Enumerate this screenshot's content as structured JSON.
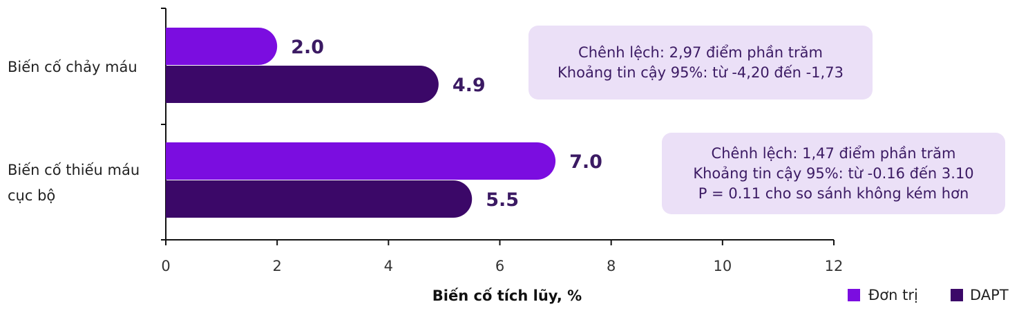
{
  "colors": {
    "don_tri": "#7b0de0",
    "dapt": "#3b0868",
    "value_text": "#3b1a63",
    "annotation_bg": "#ebe0f7",
    "axis": "#111111"
  },
  "chart_data": {
    "type": "bar",
    "orientation": "horizontal",
    "categories": [
      {
        "lines": [
          "Biến cố chảy máu"
        ]
      },
      {
        "lines": [
          "Biến cố thiếu máu",
          "cục bộ"
        ]
      }
    ],
    "series": [
      {
        "name": "Đơn trị",
        "values": [
          2.0,
          7.0
        ],
        "value_labels": [
          "2.0",
          "7.0"
        ]
      },
      {
        "name": "DAPT",
        "values": [
          4.9,
          5.5
        ],
        "value_labels": [
          "4.9",
          "5.5"
        ]
      }
    ],
    "xlabel": "Biến cố tích lũy, %",
    "xlim": [
      0,
      12
    ],
    "xticks": [
      "0",
      "2",
      "4",
      "6",
      "8",
      "10",
      "12"
    ],
    "grid": false,
    "legend_position": "bottom-right",
    "annotations": [
      {
        "lines": [
          "Chênh lệch: 2,97 điểm phần trăm",
          "Khoảng tin cậy 95%: từ -4,20 đến -1,73"
        ]
      },
      {
        "lines": [
          "Chênh lệch: 1,47 điểm phần trăm",
          "Khoảng tin cậy 95%: từ -0.16 đến 3.10",
          "P = 0.11 cho so sánh không kém hơn"
        ]
      }
    ]
  }
}
